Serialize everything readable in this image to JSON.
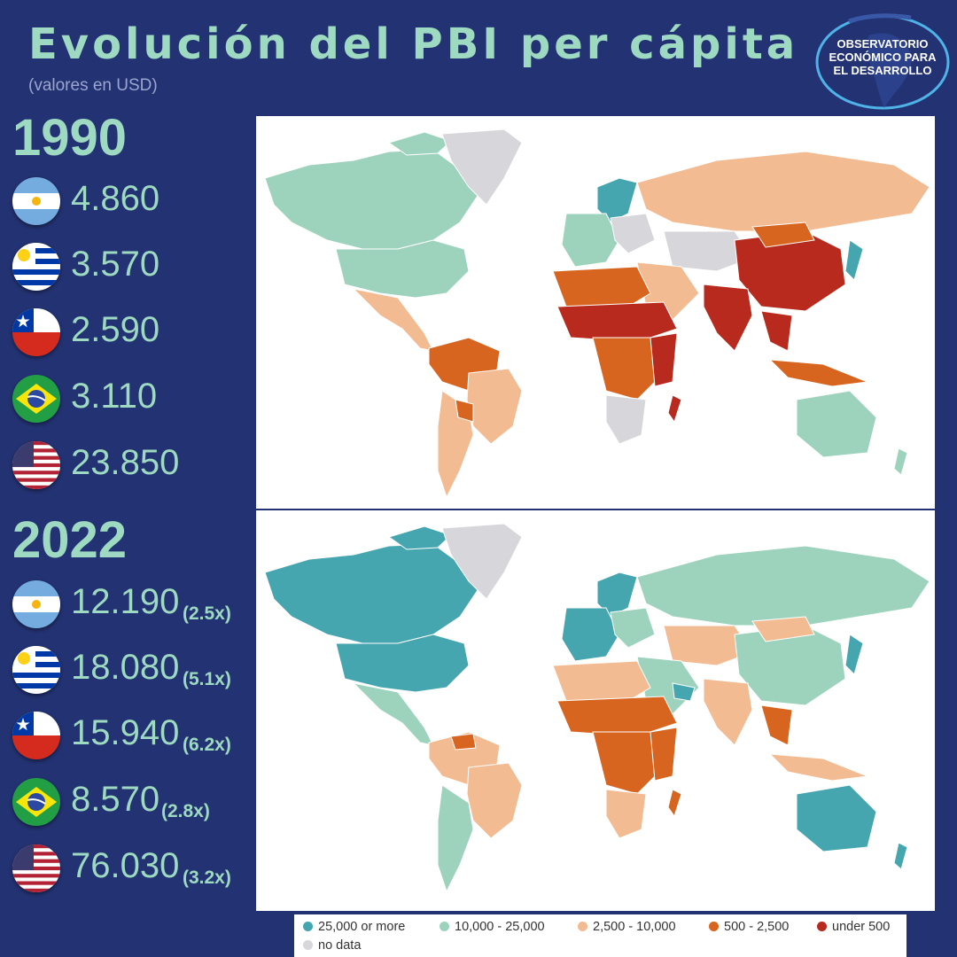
{
  "header": {
    "title": "Evolución del PBI per cápita",
    "subtitle": "(valores en USD)"
  },
  "logo": {
    "line1": "OBSERVATORIO",
    "line2": "ECONÓMICO PARA",
    "line3": "EL DESARROLLO"
  },
  "panels": [
    {
      "year": "1990",
      "countries": [
        {
          "flag": "argentina-flag",
          "value": "4.860"
        },
        {
          "flag": "uruguay-flag",
          "value": "3.570"
        },
        {
          "flag": "chile-flag",
          "value": "2.590"
        },
        {
          "flag": "brazil-flag",
          "value": "3.110"
        },
        {
          "flag": "usa-flag",
          "value": "23.850"
        }
      ]
    },
    {
      "year": "2022",
      "countries": [
        {
          "flag": "argentina-flag",
          "value": "12.190",
          "multiplier": "(2.5x)"
        },
        {
          "flag": "uruguay-flag",
          "value": "18.080",
          "multiplier": "(5.1x)"
        },
        {
          "flag": "chile-flag",
          "value": "15.940",
          "multiplier": "(6.2x)"
        },
        {
          "flag": "brazil-flag",
          "value": "8.570",
          "multiplier": "(2.8x)"
        },
        {
          "flag": "usa-flag",
          "value": "76.030",
          "multiplier": "(3.2x)"
        }
      ]
    }
  ],
  "legend": [
    {
      "label": "25,000 or more",
      "color": "#46a6b0"
    },
    {
      "label": "10,000 - 25,000",
      "color": "#9dd3bd"
    },
    {
      "label": "2,500 - 10,000",
      "color": "#f3bb92"
    },
    {
      "label": "500 - 2,500",
      "color": "#d8651f"
    },
    {
      "label": "under 500",
      "color": "#b92a1e"
    },
    {
      "label": "no data",
      "color": "#d6d6db"
    }
  ]
}
